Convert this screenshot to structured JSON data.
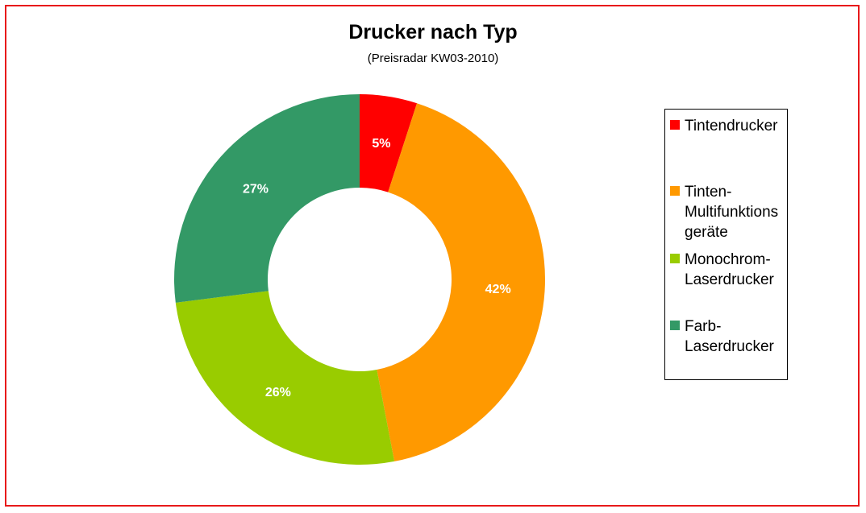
{
  "chart_data": {
    "type": "pie",
    "variant": "donut",
    "title": "Drucker nach Typ",
    "subtitle": "(Preisradar KW03-2010)",
    "categories": [
      "Tintendrucker",
      "Tinten-\nMultifunktions\ngeräte",
      "Monochrom-\nLaserdrucker",
      "Farb-\nLaserdrucker"
    ],
    "values": [
      5,
      42,
      26,
      27
    ],
    "data_labels": [
      "5%",
      "42%",
      "26%",
      "27%"
    ],
    "colors": [
      "#ff0000",
      "#ff9900",
      "#99cc00",
      "#339966"
    ],
    "legend_position": "right",
    "start_angle": "12 o'clock, clockwise"
  },
  "frame_color": "#e8191a"
}
